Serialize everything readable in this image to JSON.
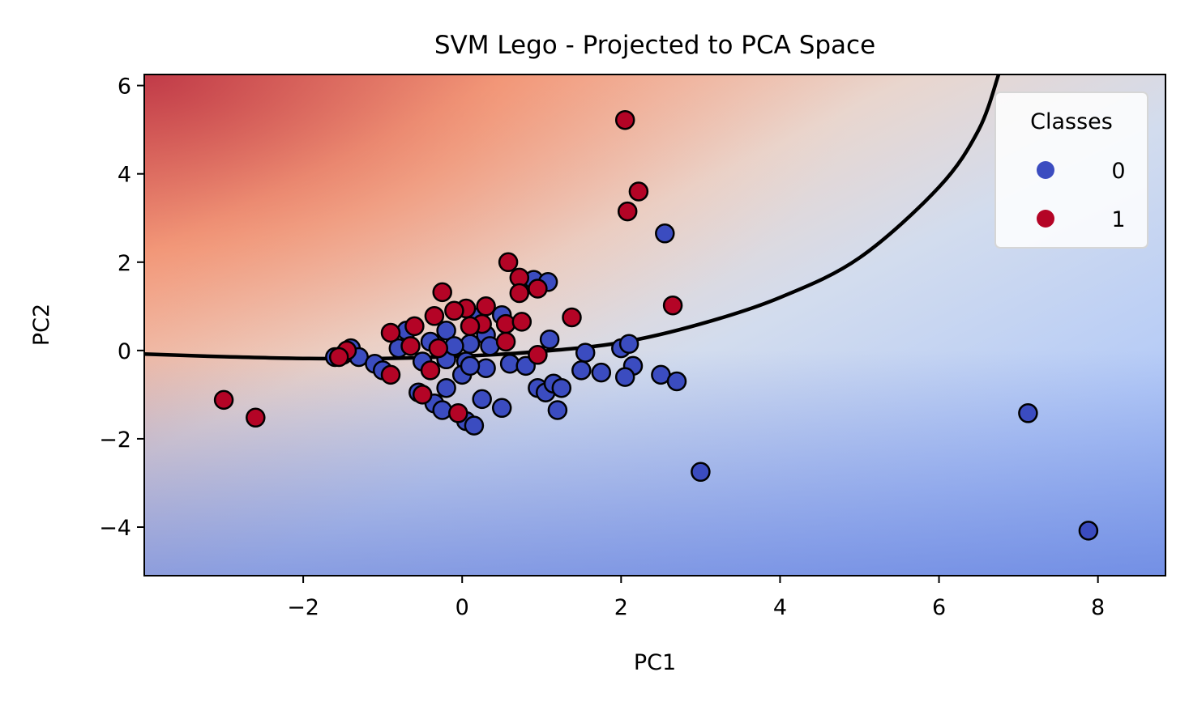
{
  "chart_data": {
    "type": "scatter",
    "title": "SVM Lego - Projected to PCA Space",
    "xlabel": "PC1",
    "ylabel": "PC2",
    "xlim": [
      -4,
      8.85
    ],
    "ylim": [
      -5.1,
      6.25
    ],
    "xticks": [
      -2,
      0,
      2,
      4,
      6,
      8
    ],
    "yticks": [
      -4,
      -2,
      0,
      2,
      4,
      6
    ],
    "tick_labels_x": [
      "−2",
      "0",
      "2",
      "4",
      "6",
      "8"
    ],
    "tick_labels_y": [
      "−4",
      "−2",
      "0",
      "2",
      "4",
      "6"
    ],
    "legend": {
      "title": "Classes",
      "placement": "top-right",
      "entries": [
        {
          "label": "0",
          "color": "#3b4cc0"
        },
        {
          "label": "1",
          "color": "#b40426"
        }
      ]
    },
    "background": "decision function contour fill (coolwarm colormap), red above boundary, blue below",
    "decision_boundary": [
      [
        -4.0,
        -0.08
      ],
      [
        -3.0,
        -0.14
      ],
      [
        -2.0,
        -0.18
      ],
      [
        -1.0,
        -0.18
      ],
      [
        0.0,
        -0.13
      ],
      [
        1.0,
        -0.02
      ],
      [
        2.0,
        0.18
      ],
      [
        3.0,
        0.6
      ],
      [
        4.0,
        1.2
      ],
      [
        5.0,
        2.1
      ],
      [
        6.0,
        3.7
      ],
      [
        6.5,
        5.0
      ],
      [
        6.75,
        6.25
      ]
    ],
    "series": [
      {
        "name": "0",
        "color": "#3b4cc0",
        "points": [
          [
            2.55,
            2.65
          ],
          [
            0.9,
            1.6
          ],
          [
            1.08,
            1.55
          ],
          [
            0.5,
            0.8
          ],
          [
            0.2,
            0.75
          ],
          [
            -0.7,
            0.45
          ],
          [
            -0.2,
            0.45
          ],
          [
            1.1,
            0.25
          ],
          [
            0.3,
            0.35
          ],
          [
            -0.4,
            0.2
          ],
          [
            0.1,
            0.15
          ],
          [
            -0.8,
            0.05
          ],
          [
            -1.4,
            0.05
          ],
          [
            -1.3,
            -0.15
          ],
          [
            -1.1,
            -0.3
          ],
          [
            -1.0,
            -0.45
          ],
          [
            -0.5,
            -0.25
          ],
          [
            -0.2,
            -0.2
          ],
          [
            0.05,
            -0.25
          ],
          [
            0.3,
            -0.4
          ],
          [
            0.6,
            -0.3
          ],
          [
            0.8,
            -0.35
          ],
          [
            -0.2,
            -0.85
          ],
          [
            0.0,
            -0.55
          ],
          [
            0.1,
            -0.35
          ],
          [
            -0.55,
            -0.95
          ],
          [
            -0.35,
            -1.2
          ],
          [
            -0.25,
            -1.35
          ],
          [
            0.25,
            -1.1
          ],
          [
            0.5,
            -1.3
          ],
          [
            0.05,
            -1.6
          ],
          [
            0.15,
            -1.7
          ],
          [
            0.95,
            -0.85
          ],
          [
            1.05,
            -0.95
          ],
          [
            1.15,
            -0.75
          ],
          [
            1.25,
            -0.85
          ],
          [
            1.2,
            -1.35
          ],
          [
            1.5,
            -0.45
          ],
          [
            1.55,
            -0.05
          ],
          [
            1.75,
            -0.5
          ],
          [
            2.0,
            0.05
          ],
          [
            2.1,
            0.15
          ],
          [
            2.15,
            -0.35
          ],
          [
            2.05,
            -0.6
          ],
          [
            2.5,
            -0.55
          ],
          [
            2.7,
            -0.7
          ],
          [
            3.0,
            -2.75
          ],
          [
            7.12,
            -1.42
          ],
          [
            7.88,
            -4.08
          ],
          [
            -1.6,
            -0.15
          ],
          [
            -1.5,
            -0.1
          ],
          [
            0.35,
            0.1
          ],
          [
            -0.1,
            0.1
          ]
        ]
      },
      {
        "name": "1",
        "color": "#b40426",
        "points": [
          [
            2.05,
            5.22
          ],
          [
            2.22,
            3.6
          ],
          [
            2.08,
            3.15
          ],
          [
            0.58,
            2.0
          ],
          [
            0.72,
            1.65
          ],
          [
            0.95,
            1.4
          ],
          [
            0.72,
            1.3
          ],
          [
            -0.25,
            1.32
          ],
          [
            0.3,
            1.0
          ],
          [
            0.05,
            0.95
          ],
          [
            -0.1,
            0.9
          ],
          [
            -0.35,
            0.78
          ],
          [
            0.55,
            0.6
          ],
          [
            0.75,
            0.65
          ],
          [
            1.38,
            0.75
          ],
          [
            0.25,
            0.6
          ],
          [
            0.1,
            0.55
          ],
          [
            -0.9,
            0.4
          ],
          [
            -0.6,
            0.55
          ],
          [
            0.55,
            0.2
          ],
          [
            -0.65,
            0.1
          ],
          [
            -0.3,
            0.05
          ],
          [
            -1.45,
            0.0
          ],
          [
            -1.55,
            -0.15
          ],
          [
            -0.9,
            -0.55
          ],
          [
            -0.4,
            -0.45
          ],
          [
            0.95,
            -0.1
          ],
          [
            2.65,
            1.02
          ],
          [
            -3.0,
            -1.12
          ],
          [
            -2.6,
            -1.52
          ],
          [
            -0.5,
            -1.0
          ],
          [
            -0.05,
            -1.42
          ]
        ]
      }
    ]
  }
}
